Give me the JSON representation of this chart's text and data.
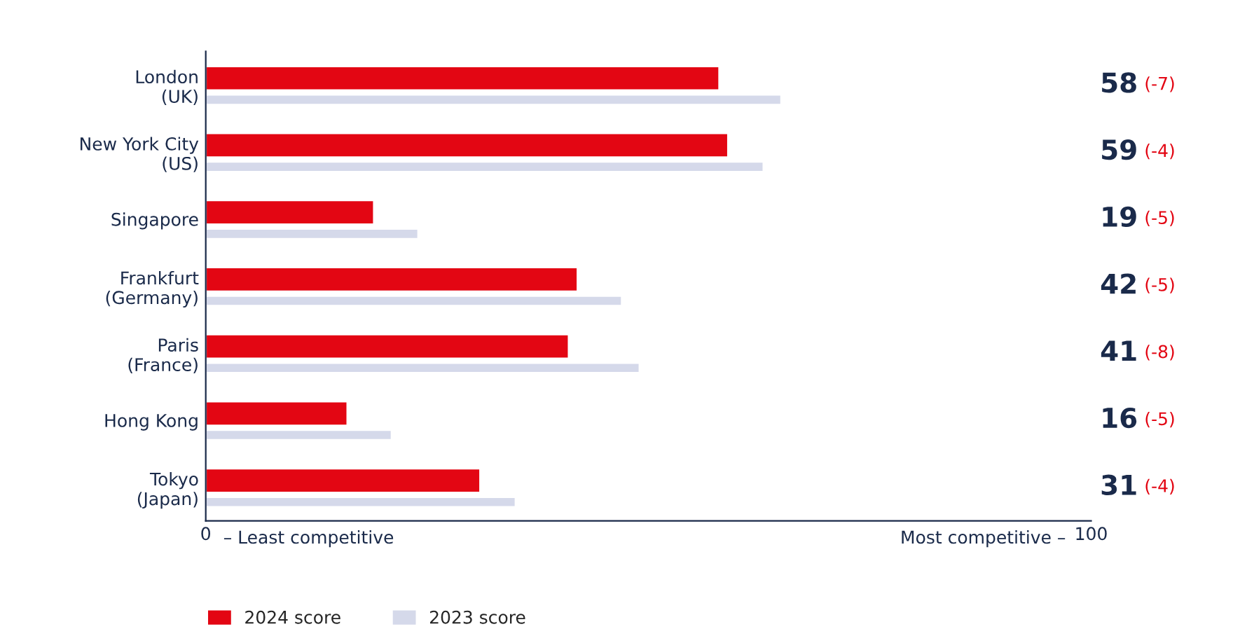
{
  "chart_data": {
    "type": "bar",
    "orientation": "horizontal",
    "categories": [
      "London\n(UK)",
      "New York City\n(US)",
      "Singapore",
      "Frankfurt\n(Germany)",
      "Paris\n(France)",
      "Hong Kong",
      "Tokyo\n(Japan)"
    ],
    "series": [
      {
        "name": "2024 score",
        "color": "#e30613",
        "values": [
          58,
          59,
          19,
          42,
          41,
          16,
          31
        ],
        "value_labels": [
          "58",
          "59",
          "19",
          "42",
          "41",
          "16",
          "31"
        ]
      },
      {
        "name": "2023 score",
        "color": "#d5d9ea",
        "values": [
          65,
          63,
          24,
          47,
          49,
          21,
          35
        ]
      }
    ],
    "annotations": [
      "(-7)",
      "(-4)",
      "(-5)",
      "(-5)",
      "(-8)",
      "(-5)",
      "(-4)",
      "– Least competitive",
      "Most competitive –"
    ],
    "xlim": [
      0,
      100
    ],
    "xticks": [
      0,
      100
    ],
    "legend": "bottom left",
    "grid": false
  }
}
